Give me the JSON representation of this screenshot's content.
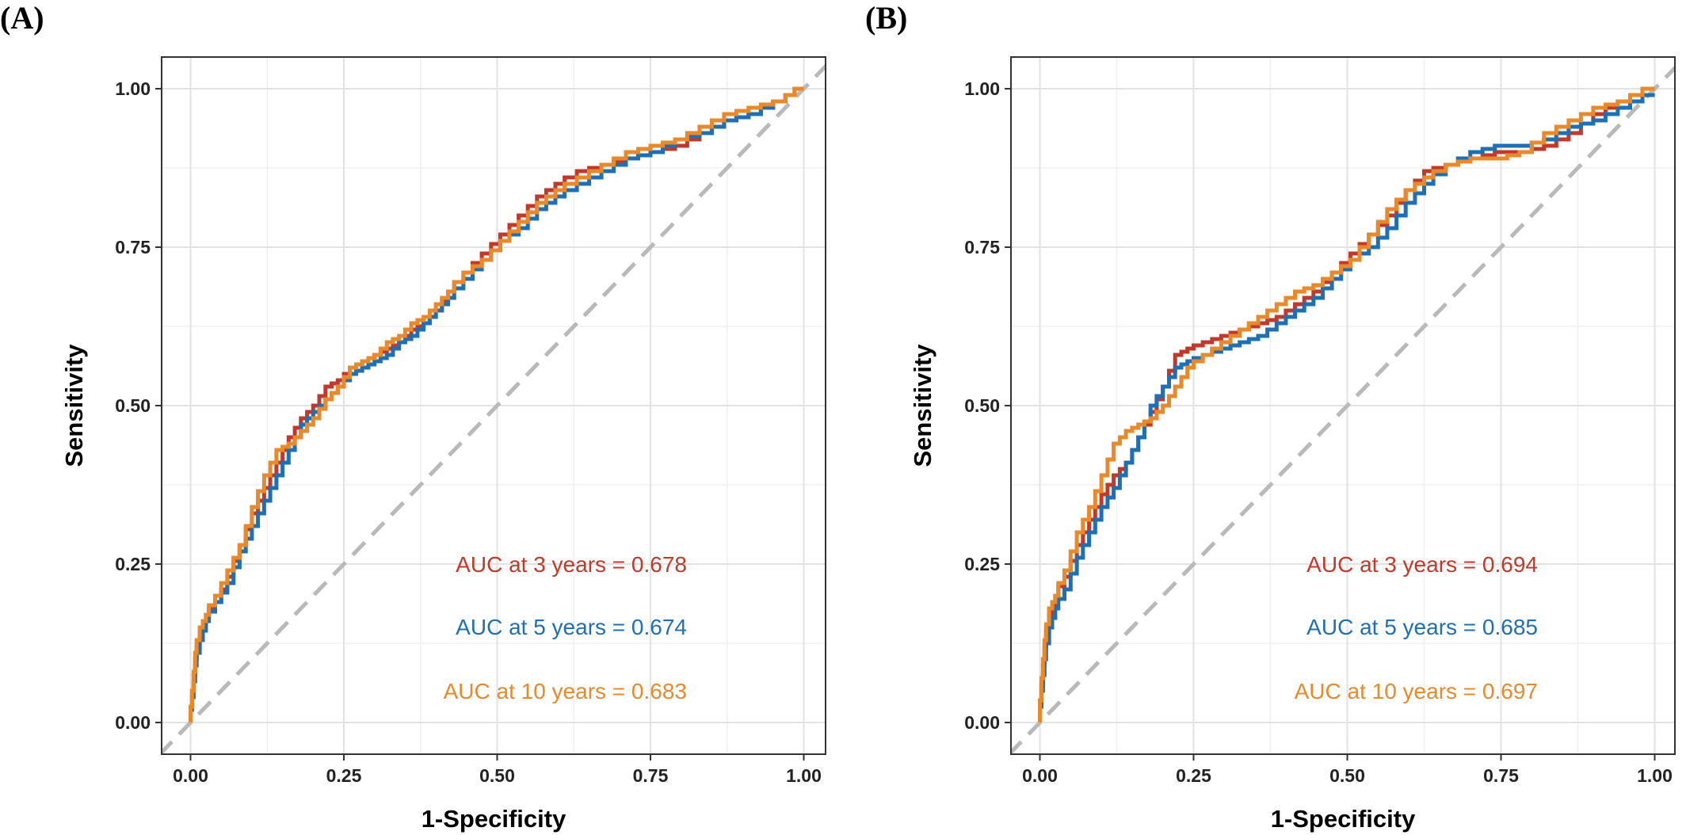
{
  "colors": {
    "auc_3": "#c0392b",
    "auc_5": "#1f6fb4",
    "auc_10": "#e8892b",
    "reference_line": "#b9b9b9",
    "grid_major": "#e2e2e2",
    "grid_minor": "#f0f0f0",
    "panel_border": "#333333"
  },
  "chart_data": [
    {
      "type": "line",
      "panel_label": "(A)",
      "xlabel": "1-Specificity",
      "ylabel": "Sensitivity",
      "xlim": [
        0,
        1
      ],
      "ylim": [
        0,
        1
      ],
      "x_ticks": [
        "0.00",
        "0.25",
        "0.50",
        "0.75",
        "1.00"
      ],
      "y_ticks": [
        "0.00",
        "0.25",
        "0.50",
        "0.75",
        "1.00"
      ],
      "grid": true,
      "reference_line": "diagonal dashed",
      "annotations": [
        {
          "text": "AUC at 3 years = 0.678",
          "color": "#c0392b"
        },
        {
          "text": "AUC at 5 years = 0.674",
          "color": "#1f6fb4"
        },
        {
          "text": "AUC at 10 years = 0.683",
          "color": "#e8892b"
        }
      ],
      "series": [
        {
          "color": "#c0392b",
          "x": [
            0,
            0.005,
            0.01,
            0.02,
            0.03,
            0.05,
            0.07,
            0.09,
            0.11,
            0.13,
            0.15,
            0.17,
            0.19,
            0.21,
            0.23,
            0.25,
            0.27,
            0.29,
            0.31,
            0.33,
            0.35,
            0.37,
            0.39,
            0.41,
            0.43,
            0.46,
            0.49,
            0.52,
            0.55,
            0.58,
            0.61,
            0.65,
            0.69,
            0.73,
            0.77,
            0.81,
            0.85,
            0.89,
            0.93,
            0.97,
            1.0
          ],
          "y": [
            0,
            0.05,
            0.1,
            0.14,
            0.17,
            0.19,
            0.23,
            0.28,
            0.33,
            0.37,
            0.41,
            0.45,
            0.48,
            0.5,
            0.53,
            0.54,
            0.56,
            0.57,
            0.58,
            0.59,
            0.6,
            0.62,
            0.63,
            0.65,
            0.68,
            0.71,
            0.74,
            0.77,
            0.8,
            0.83,
            0.85,
            0.87,
            0.88,
            0.89,
            0.9,
            0.91,
            0.93,
            0.95,
            0.96,
            0.98,
            1.0
          ]
        },
        {
          "color": "#1f6fb4",
          "x": [
            0,
            0.005,
            0.01,
            0.02,
            0.03,
            0.05,
            0.07,
            0.09,
            0.11,
            0.13,
            0.15,
            0.17,
            0.19,
            0.21,
            0.23,
            0.25,
            0.27,
            0.29,
            0.31,
            0.33,
            0.35,
            0.37,
            0.39,
            0.41,
            0.43,
            0.46,
            0.49,
            0.52,
            0.55,
            0.58,
            0.61,
            0.65,
            0.69,
            0.73,
            0.77,
            0.81,
            0.85,
            0.89,
            0.93,
            0.97,
            1.0
          ],
          "y": [
            0,
            0.04,
            0.09,
            0.13,
            0.16,
            0.19,
            0.22,
            0.27,
            0.31,
            0.35,
            0.39,
            0.43,
            0.47,
            0.49,
            0.51,
            0.53,
            0.55,
            0.56,
            0.57,
            0.58,
            0.6,
            0.61,
            0.63,
            0.65,
            0.67,
            0.7,
            0.73,
            0.76,
            0.78,
            0.81,
            0.83,
            0.85,
            0.87,
            0.89,
            0.9,
            0.92,
            0.93,
            0.95,
            0.96,
            0.98,
            1.0
          ]
        },
        {
          "color": "#e8892b",
          "x": [
            0,
            0.005,
            0.01,
            0.02,
            0.03,
            0.05,
            0.07,
            0.09,
            0.11,
            0.13,
            0.15,
            0.17,
            0.19,
            0.21,
            0.23,
            0.25,
            0.27,
            0.29,
            0.31,
            0.33,
            0.35,
            0.37,
            0.39,
            0.41,
            0.43,
            0.46,
            0.49,
            0.52,
            0.55,
            0.58,
            0.61,
            0.65,
            0.69,
            0.73,
            0.77,
            0.81,
            0.85,
            0.89,
            0.93,
            0.97,
            1.0
          ],
          "y": [
            0,
            0.05,
            0.11,
            0.15,
            0.17,
            0.2,
            0.24,
            0.28,
            0.34,
            0.39,
            0.43,
            0.44,
            0.46,
            0.48,
            0.51,
            0.53,
            0.56,
            0.57,
            0.58,
            0.6,
            0.61,
            0.63,
            0.64,
            0.66,
            0.68,
            0.71,
            0.73,
            0.76,
            0.79,
            0.82,
            0.84,
            0.86,
            0.88,
            0.9,
            0.91,
            0.92,
            0.94,
            0.96,
            0.97,
            0.98,
            1.0
          ]
        }
      ]
    },
    {
      "type": "line",
      "panel_label": "(B)",
      "xlabel": "1-Specificity",
      "ylabel": "Sensitivity",
      "xlim": [
        0,
        1
      ],
      "ylim": [
        0,
        1
      ],
      "x_ticks": [
        "0.00",
        "0.25",
        "0.50",
        "0.75",
        "1.00"
      ],
      "y_ticks": [
        "0.00",
        "0.25",
        "0.50",
        "0.75",
        "1.00"
      ],
      "grid": true,
      "reference_line": "diagonal dashed",
      "annotations": [
        {
          "text": "AUC at 3 years = 0.694",
          "color": "#c0392b"
        },
        {
          "text": "AUC at 5 years = 0.685",
          "color": "#1f6fb4"
        },
        {
          "text": "AUC at 10 years = 0.697",
          "color": "#e8892b"
        }
      ],
      "series": [
        {
          "color": "#c0392b",
          "x": [
            0,
            0.005,
            0.01,
            0.02,
            0.03,
            0.05,
            0.07,
            0.09,
            0.11,
            0.13,
            0.15,
            0.17,
            0.19,
            0.21,
            0.23,
            0.25,
            0.28,
            0.31,
            0.34,
            0.37,
            0.4,
            0.43,
            0.46,
            0.49,
            0.52,
            0.55,
            0.58,
            0.61,
            0.64,
            0.68,
            0.72,
            0.76,
            0.8,
            0.84,
            0.88,
            0.92,
            0.96,
            1.0
          ],
          "y": [
            0,
            0.06,
            0.12,
            0.17,
            0.2,
            0.23,
            0.28,
            0.32,
            0.36,
            0.39,
            0.41,
            0.45,
            0.49,
            0.53,
            0.58,
            0.59,
            0.6,
            0.61,
            0.62,
            0.63,
            0.64,
            0.66,
            0.68,
            0.71,
            0.74,
            0.77,
            0.8,
            0.84,
            0.87,
            0.88,
            0.89,
            0.9,
            0.9,
            0.91,
            0.93,
            0.96,
            0.98,
            1.0
          ]
        },
        {
          "color": "#1f6fb4",
          "x": [
            0,
            0.005,
            0.01,
            0.02,
            0.03,
            0.05,
            0.07,
            0.09,
            0.11,
            0.13,
            0.15,
            0.17,
            0.19,
            0.21,
            0.23,
            0.25,
            0.28,
            0.31,
            0.34,
            0.37,
            0.4,
            0.43,
            0.46,
            0.49,
            0.52,
            0.55,
            0.58,
            0.61,
            0.64,
            0.68,
            0.72,
            0.76,
            0.8,
            0.84,
            0.88,
            0.92,
            0.96,
            1.0
          ],
          "y": [
            0,
            0.05,
            0.1,
            0.15,
            0.18,
            0.21,
            0.26,
            0.3,
            0.34,
            0.37,
            0.41,
            0.45,
            0.5,
            0.53,
            0.56,
            0.57,
            0.58,
            0.59,
            0.6,
            0.61,
            0.63,
            0.65,
            0.67,
            0.7,
            0.73,
            0.75,
            0.78,
            0.82,
            0.85,
            0.88,
            0.9,
            0.91,
            0.91,
            0.92,
            0.94,
            0.95,
            0.97,
            0.99
          ]
        },
        {
          "color": "#e8892b",
          "x": [
            0,
            0.005,
            0.01,
            0.02,
            0.03,
            0.05,
            0.07,
            0.09,
            0.11,
            0.13,
            0.15,
            0.17,
            0.19,
            0.21,
            0.23,
            0.25,
            0.28,
            0.31,
            0.34,
            0.37,
            0.4,
            0.43,
            0.46,
            0.49,
            0.52,
            0.55,
            0.58,
            0.61,
            0.64,
            0.68,
            0.72,
            0.76,
            0.8,
            0.84,
            0.88,
            0.92,
            0.96,
            1.0
          ],
          "y": [
            0,
            0.07,
            0.13,
            0.18,
            0.2,
            0.24,
            0.3,
            0.34,
            0.39,
            0.44,
            0.46,
            0.47,
            0.48,
            0.5,
            0.53,
            0.56,
            0.58,
            0.6,
            0.62,
            0.64,
            0.66,
            0.68,
            0.69,
            0.71,
            0.73,
            0.77,
            0.81,
            0.84,
            0.86,
            0.88,
            0.89,
            0.89,
            0.9,
            0.93,
            0.95,
            0.97,
            0.98,
            1.0
          ]
        }
      ]
    }
  ]
}
